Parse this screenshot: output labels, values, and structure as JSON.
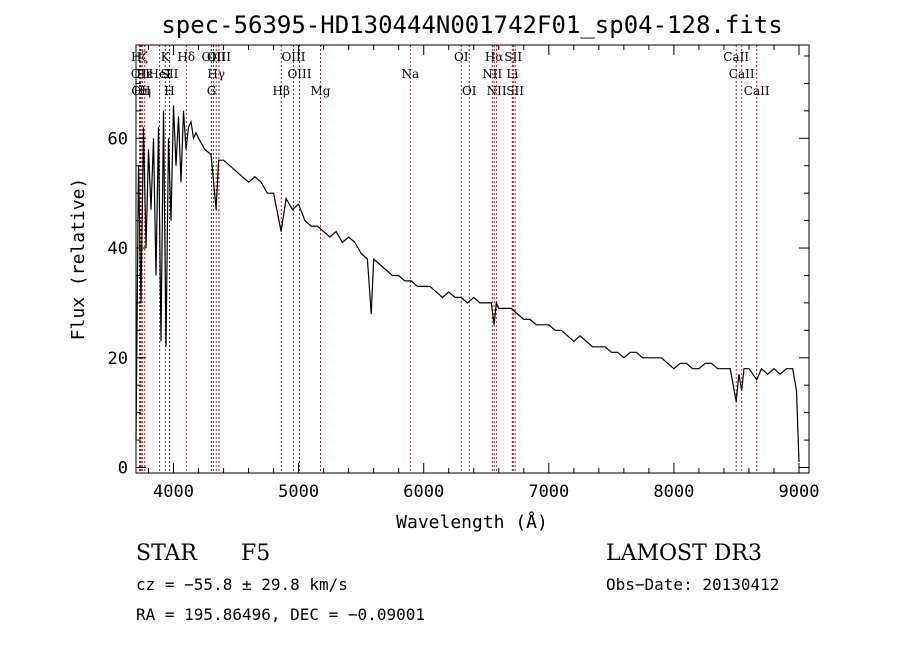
{
  "chart_data": {
    "type": "line",
    "title": "spec-56395-HD130444N001742F01_sp04-128.fits",
    "xlabel": "Wavelength (Å)",
    "ylabel": "Flux (relative)",
    "xlim": [
      3700,
      9080
    ],
    "ylim": [
      -1,
      77
    ],
    "xticks": [
      4000,
      5000,
      6000,
      7000,
      8000,
      9000
    ],
    "yticks": [
      0,
      20,
      40,
      60
    ],
    "spectrum": {
      "name": "flux",
      "x": [
        3700,
        3720,
        3740,
        3760,
        3780,
        3800,
        3820,
        3840,
        3860,
        3880,
        3900,
        3920,
        3940,
        3960,
        3980,
        4000,
        4020,
        4040,
        4060,
        4080,
        4100,
        4120,
        4140,
        4160,
        4180,
        4200,
        4250,
        4300,
        4340,
        4360,
        4400,
        4450,
        4500,
        4550,
        4600,
        4650,
        4700,
        4750,
        4800,
        4860,
        4900,
        4950,
        5000,
        5050,
        5100,
        5150,
        5200,
        5250,
        5300,
        5350,
        5400,
        5450,
        5500,
        5550,
        5580,
        5600,
        5650,
        5700,
        5750,
        5800,
        5850,
        5900,
        5950,
        6000,
        6050,
        6100,
        6150,
        6200,
        6250,
        6300,
        6350,
        6400,
        6450,
        6500,
        6540,
        6563,
        6580,
        6600,
        6650,
        6700,
        6750,
        6800,
        6850,
        6900,
        6950,
        7000,
        7050,
        7100,
        7150,
        7200,
        7250,
        7300,
        7350,
        7400,
        7450,
        7500,
        7550,
        7600,
        7650,
        7700,
        7750,
        7800,
        7850,
        7900,
        7950,
        8000,
        8050,
        8100,
        8150,
        8200,
        8250,
        8300,
        8350,
        8400,
        8450,
        8498,
        8520,
        8542,
        8560,
        8600,
        8662,
        8700,
        8750,
        8800,
        8850,
        8900,
        8950,
        8980,
        9000
      ],
      "y": [
        5,
        55,
        30,
        62,
        40,
        58,
        47,
        60,
        35,
        62,
        23,
        65,
        22,
        60,
        45,
        66,
        55,
        64,
        52,
        65,
        58,
        62,
        63,
        60,
        61,
        60,
        58,
        57,
        47,
        56,
        56,
        55,
        54,
        53,
        52,
        53,
        52,
        50,
        50,
        43,
        49,
        47,
        48,
        45,
        44,
        44,
        43,
        42,
        43,
        41,
        42,
        41,
        39,
        38,
        28,
        38,
        37,
        36,
        35,
        35,
        34,
        34,
        33,
        33,
        33,
        32,
        31,
        32,
        31,
        31,
        30,
        31,
        30,
        30,
        30,
        26,
        30,
        29,
        29,
        29,
        28,
        27,
        27,
        26,
        26,
        26,
        25,
        25,
        24,
        23,
        24,
        23,
        22,
        22,
        22,
        21,
        21,
        20,
        21,
        21,
        20,
        20,
        20,
        20,
        19,
        18,
        19,
        19,
        18,
        18,
        19,
        19,
        18,
        18,
        18,
        12,
        17,
        14,
        18,
        18,
        16,
        18,
        17,
        18,
        17,
        18,
        18,
        14,
        1
      ]
    },
    "lines": [
      {
        "label": "Hζ",
        "x": 3728,
        "row": 0
      },
      {
        "label": "OII",
        "x": 3735,
        "row": 1
      },
      {
        "label": "OII",
        "x": 3740,
        "row": 2
      },
      {
        "label": "Hη",
        "x": 3750,
        "row": 2
      },
      {
        "label": "Hε",
        "x": 3770,
        "row": 1
      },
      {
        "label": "HeI",
        "x": 3889,
        "row": 1
      },
      {
        "label": "K",
        "x": 3934,
        "row": 0
      },
      {
        "label": "SII",
        "x": 3968,
        "row": 1
      },
      {
        "label": "H",
        "x": 3968,
        "row": 2
      },
      {
        "label": "Hδ",
        "x": 4102,
        "row": 0
      },
      {
        "label": "OIII",
        "x": 4320,
        "row": 0
      },
      {
        "label": "Hγ",
        "x": 4341,
        "row": 1
      },
      {
        "label": "G",
        "x": 4304,
        "row": 2
      },
      {
        "label": "OIII",
        "x": 4363,
        "row": 0
      },
      {
        "label": "Hβ",
        "x": 4861,
        "row": 2
      },
      {
        "label": "OIII",
        "x": 4959,
        "row": 0
      },
      {
        "label": "OIII",
        "x": 5007,
        "row": 1
      },
      {
        "label": "Mg",
        "x": 5175,
        "row": 2
      },
      {
        "label": "Na",
        "x": 5893,
        "row": 1
      },
      {
        "label": "OI",
        "x": 6300,
        "row": 0
      },
      {
        "label": "OI",
        "x": 6364,
        "row": 2
      },
      {
        "label": "Hα",
        "x": 6563,
        "row": 0
      },
      {
        "label": "NII",
        "x": 6548,
        "row": 1
      },
      {
        "label": "NII",
        "x": 6583,
        "row": 2
      },
      {
        "label": "SII",
        "x": 6716,
        "row": 0
      },
      {
        "label": "SII",
        "x": 6731,
        "row": 2
      },
      {
        "label": "Li",
        "x": 6708,
        "row": 1
      },
      {
        "label": "CaII",
        "x": 8498,
        "row": 0
      },
      {
        "label": "CaII",
        "x": 8542,
        "row": 1
      },
      {
        "label": "CaII",
        "x": 8662,
        "row": 2
      }
    ]
  },
  "info": {
    "class": "STAR",
    "subclass": "F5",
    "survey": "LAMOST DR3",
    "cz": "cz = −55.8 ± 29.8 km/s",
    "obs_date": "Obs−Date: 20130412",
    "coords": "RA = 195.86496, DEC =  −0.09001"
  }
}
